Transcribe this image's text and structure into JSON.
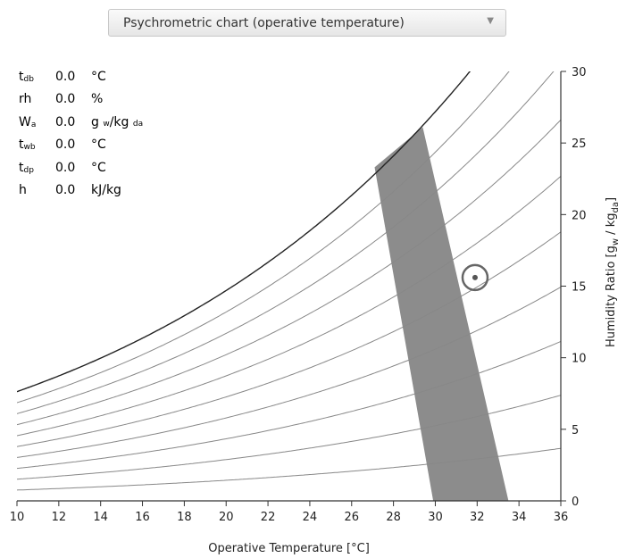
{
  "dropdown": {
    "label": "Psychrometric chart (operative temperature)",
    "arrow_icon": "caret-down-icon"
  },
  "readout": [
    {
      "sym": "t",
      "sub": "db",
      "value": "0.0",
      "unit": "°C"
    },
    {
      "sym": "rh",
      "sub": "",
      "value": "0.0",
      "unit": "%"
    },
    {
      "sym": "W",
      "sub": "a",
      "value": "0.0",
      "unit": "g w/kg da"
    },
    {
      "sym": "t",
      "sub": "wb",
      "value": "0.0",
      "unit": "°C"
    },
    {
      "sym": "t",
      "sub": "dp",
      "value": "0.0",
      "unit": "°C"
    },
    {
      "sym": "h",
      "sub": "",
      "value": "0.0",
      "unit": "kJ/kg"
    }
  ],
  "chart_data": {
    "type": "line",
    "xlabel": "Operative Temperature [°C]",
    "ylabel": "Humidity Ratio [gw / kgda]",
    "xlim": [
      10,
      36
    ],
    "ylim": [
      0,
      30
    ],
    "xticks": [
      10,
      12,
      14,
      16,
      18,
      20,
      22,
      24,
      26,
      28,
      30,
      32,
      34,
      36
    ],
    "yticks": [
      0,
      5,
      10,
      15,
      20,
      25,
      30
    ],
    "rh_curves": [
      1.0,
      0.9,
      0.8,
      0.7,
      0.6,
      0.5,
      0.4,
      0.3,
      0.2,
      0.1
    ],
    "comfort_zone": [
      {
        "x": 27.1,
        "y": 23.3
      },
      {
        "x": 29.4,
        "y": 26.1
      },
      {
        "x": 33.5,
        "y": 0
      },
      {
        "x": 29.9,
        "y": 0
      }
    ],
    "point": {
      "x": 31.9,
      "y": 15.6
    },
    "colors": {
      "saturation": "#222222",
      "rh": "#888888",
      "zone": "#8c8c8c",
      "axis": "#333333"
    }
  }
}
